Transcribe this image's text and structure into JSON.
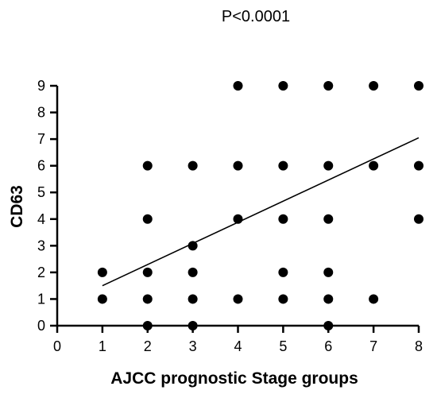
{
  "chart_data": {
    "type": "scatter",
    "annotation": "P<0.0001",
    "xlabel": "AJCC prognostic Stage groups",
    "ylabel": "CD63",
    "xlim": [
      0,
      8
    ],
    "ylim": [
      0,
      9
    ],
    "x_ticks": [
      0,
      1,
      2,
      3,
      4,
      5,
      6,
      7,
      8
    ],
    "y_ticks": [
      0,
      1,
      2,
      3,
      4,
      5,
      6,
      7,
      8,
      9
    ],
    "grid": false,
    "legend": "none",
    "points": [
      {
        "x": 1,
        "y": 1
      },
      {
        "x": 1,
        "y": 2
      },
      {
        "x": 2,
        "y": 0
      },
      {
        "x": 2,
        "y": 1
      },
      {
        "x": 2,
        "y": 2
      },
      {
        "x": 2,
        "y": 4
      },
      {
        "x": 2,
        "y": 6
      },
      {
        "x": 3,
        "y": 0
      },
      {
        "x": 3,
        "y": 1
      },
      {
        "x": 3,
        "y": 2
      },
      {
        "x": 3,
        "y": 3
      },
      {
        "x": 3,
        "y": 6
      },
      {
        "x": 4,
        "y": 1
      },
      {
        "x": 4,
        "y": 4
      },
      {
        "x": 4,
        "y": 6
      },
      {
        "x": 4,
        "y": 9
      },
      {
        "x": 5,
        "y": 1
      },
      {
        "x": 5,
        "y": 2
      },
      {
        "x": 5,
        "y": 4
      },
      {
        "x": 5,
        "y": 6
      },
      {
        "x": 5,
        "y": 9
      },
      {
        "x": 6,
        "y": 0
      },
      {
        "x": 6,
        "y": 1
      },
      {
        "x": 6,
        "y": 2
      },
      {
        "x": 6,
        "y": 4
      },
      {
        "x": 6,
        "y": 6
      },
      {
        "x": 6,
        "y": 9
      },
      {
        "x": 7,
        "y": 1
      },
      {
        "x": 7,
        "y": 6
      },
      {
        "x": 7,
        "y": 9
      },
      {
        "x": 8,
        "y": 4
      },
      {
        "x": 8,
        "y": 6
      },
      {
        "x": 8,
        "y": 9
      }
    ],
    "trend_line": {
      "x": [
        1,
        8
      ],
      "y": [
        1.5,
        7.05
      ]
    },
    "colors": {
      "points": "#000000",
      "line": "#000000",
      "axes": "#000000"
    }
  }
}
